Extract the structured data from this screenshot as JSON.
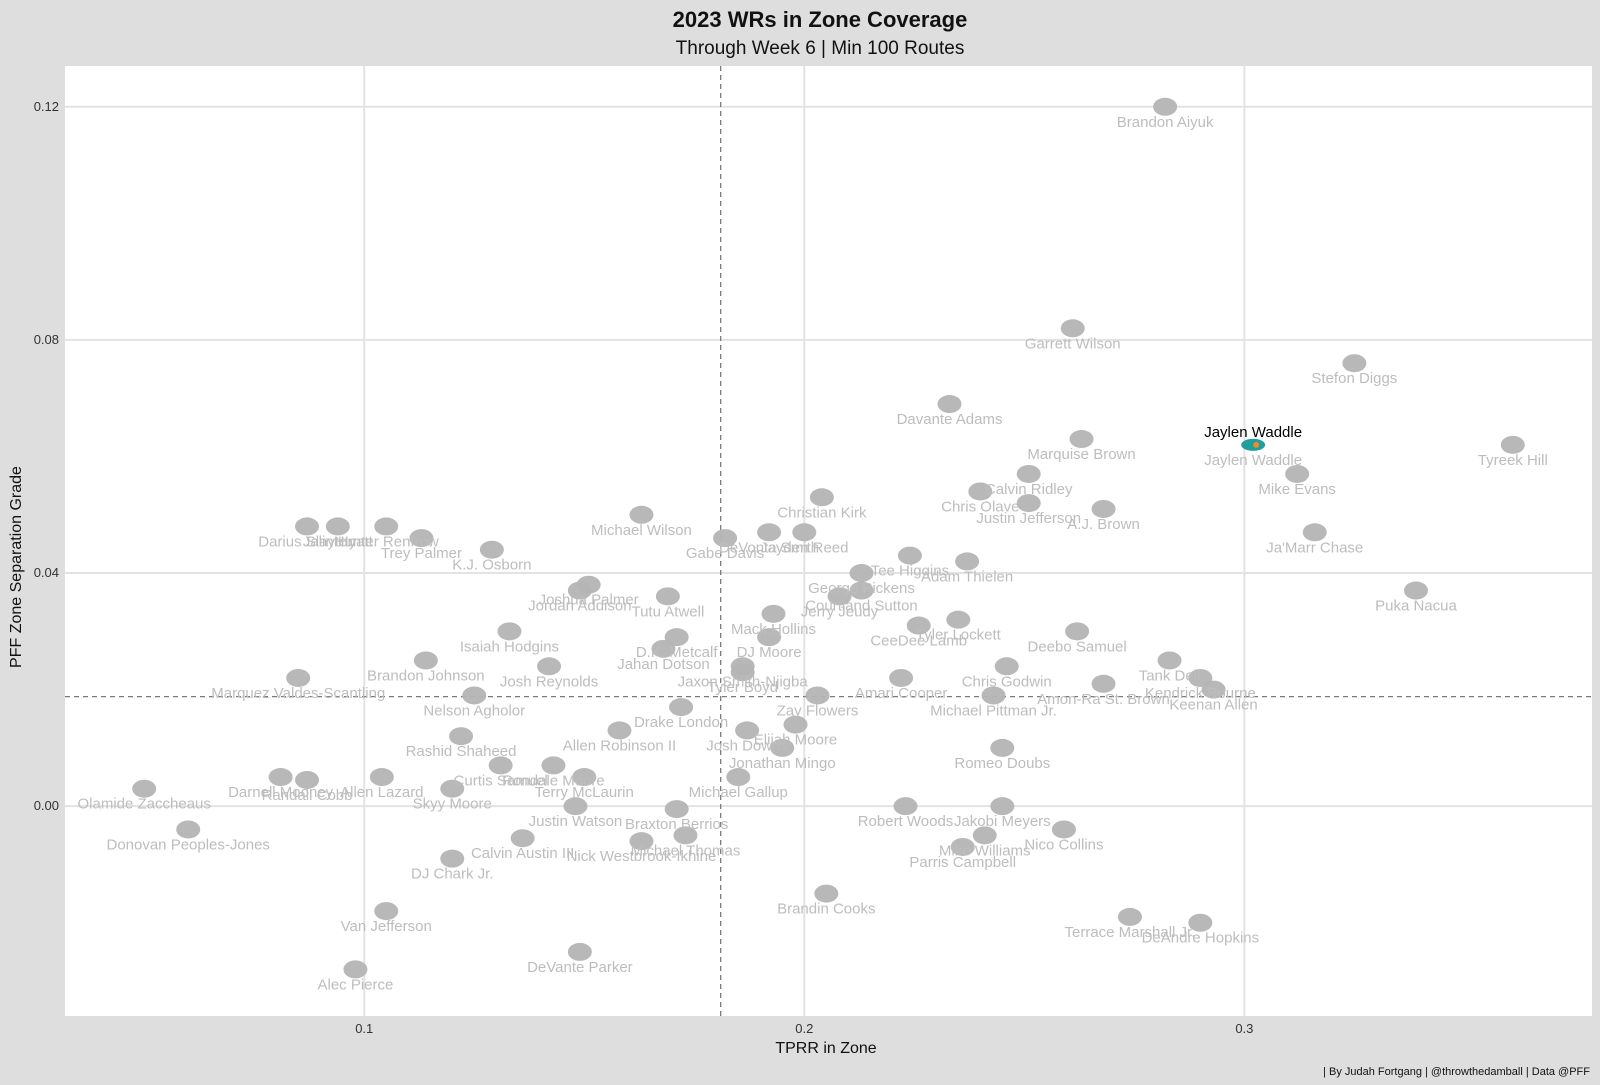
{
  "caption": "| By Judah Fortgang | @throwthedamball | Data @PFF",
  "colors": {
    "background": "#dedede",
    "panel": "#ffffff",
    "grid": "#e3e3e3",
    "marker": "#b4b4b4",
    "label": "#bdbdbd",
    "highlight_label": "#000000",
    "highlight_marker": "#1f9e9b",
    "highlight_accent": "#f28a2b"
  },
  "chart_data": {
    "type": "scatter",
    "title": "2023 WRs in Zone Coverage",
    "subtitle": "Through Week 6 | Min 100 Routes",
    "xlabel": "TPRR in Zone",
    "ylabel": "PFF Zone Separation Grade",
    "xlim": [
      0.032,
      0.379
    ],
    "ylim": [
      -0.036,
      0.127
    ],
    "xticks": [
      0.1,
      0.2,
      0.3
    ],
    "yticks": [
      0.0,
      0.04,
      0.08,
      0.12
    ],
    "xtick_labels": [
      "0.1",
      "0.2",
      "0.3"
    ],
    "ytick_labels": [
      "0.00",
      "0.04",
      "0.08",
      "0.12"
    ],
    "ref_lines": {
      "x": 0.181,
      "y": 0.0188
    },
    "grid": true,
    "highlight": "Jaylen Waddle",
    "points": [
      {
        "name": "Brandon Aiyuk",
        "x": 0.282,
        "y": 0.12
      },
      {
        "name": "Garrett Wilson",
        "x": 0.261,
        "y": 0.082
      },
      {
        "name": "Stefon Diggs",
        "x": 0.325,
        "y": 0.076
      },
      {
        "name": "Davante Adams",
        "x": 0.233,
        "y": 0.069
      },
      {
        "name": "Marquise Brown",
        "x": 0.263,
        "y": 0.063
      },
      {
        "name": "Jaylen Waddle",
        "x": 0.302,
        "y": 0.062
      },
      {
        "name": "Tyreek Hill",
        "x": 0.361,
        "y": 0.062
      },
      {
        "name": "Calvin Ridley",
        "x": 0.251,
        "y": 0.057
      },
      {
        "name": "Mike Evans",
        "x": 0.312,
        "y": 0.057
      },
      {
        "name": "Chris Olave",
        "x": 0.24,
        "y": 0.054
      },
      {
        "name": "Christian Kirk",
        "x": 0.204,
        "y": 0.053
      },
      {
        "name": "Justin Jefferson",
        "x": 0.251,
        "y": 0.052
      },
      {
        "name": "A.J. Brown",
        "x": 0.268,
        "y": 0.051
      },
      {
        "name": "Michael Wilson",
        "x": 0.163,
        "y": 0.05
      },
      {
        "name": "Hunter Renfrow",
        "x": 0.105,
        "y": 0.048
      },
      {
        "name": "Darius Slayton",
        "x": 0.087,
        "y": 0.048
      },
      {
        "name": "Jalin Hyatt",
        "x": 0.094,
        "y": 0.048
      },
      {
        "name": "Ja'Marr Chase",
        "x": 0.316,
        "y": 0.047
      },
      {
        "name": "Jayden Reed",
        "x": 0.2,
        "y": 0.047
      },
      {
        "name": "DeVonta Smith",
        "x": 0.192,
        "y": 0.047
      },
      {
        "name": "Trey Palmer",
        "x": 0.113,
        "y": 0.046
      },
      {
        "name": "Gabe Davis",
        "x": 0.182,
        "y": 0.046
      },
      {
        "name": "K.J. Osborn",
        "x": 0.129,
        "y": 0.044
      },
      {
        "name": "Tee Higgins",
        "x": 0.224,
        "y": 0.043
      },
      {
        "name": "Adam Thielen",
        "x": 0.237,
        "y": 0.042
      },
      {
        "name": "George Pickens",
        "x": 0.213,
        "y": 0.04
      },
      {
        "name": "Joshua Palmer",
        "x": 0.151,
        "y": 0.038
      },
      {
        "name": "Puka Nacua",
        "x": 0.339,
        "y": 0.037
      },
      {
        "name": "Courtland Sutton",
        "x": 0.213,
        "y": 0.037
      },
      {
        "name": "Jordan Addison",
        "x": 0.149,
        "y": 0.037
      },
      {
        "name": "Tutu Atwell",
        "x": 0.169,
        "y": 0.036
      },
      {
        "name": "Jerry Jeudy",
        "x": 0.208,
        "y": 0.036
      },
      {
        "name": "Mack Hollins",
        "x": 0.193,
        "y": 0.033
      },
      {
        "name": "Tyler Lockett",
        "x": 0.235,
        "y": 0.032
      },
      {
        "name": "CeeDee Lamb",
        "x": 0.226,
        "y": 0.031
      },
      {
        "name": "Isaiah Hodgins",
        "x": 0.133,
        "y": 0.03
      },
      {
        "name": "Deebo Samuel",
        "x": 0.262,
        "y": 0.03
      },
      {
        "name": "D.K. Metcalf",
        "x": 0.171,
        "y": 0.029
      },
      {
        "name": "DJ Moore",
        "x": 0.192,
        "y": 0.029
      },
      {
        "name": "Jahan Dotson",
        "x": 0.168,
        "y": 0.027
      },
      {
        "name": "Tank Dell",
        "x": 0.283,
        "y": 0.025
      },
      {
        "name": "Brandon Johnson",
        "x": 0.114,
        "y": 0.025
      },
      {
        "name": "Jaxon Smith-Njigba",
        "x": 0.186,
        "y": 0.024
      },
      {
        "name": "Chris Godwin",
        "x": 0.246,
        "y": 0.024
      },
      {
        "name": "Josh Reynolds",
        "x": 0.142,
        "y": 0.024
      },
      {
        "name": "Tyler Boyd",
        "x": 0.186,
        "y": 0.023
      },
      {
        "name": "Amari Cooper",
        "x": 0.222,
        "y": 0.022
      },
      {
        "name": "Kendrick Bourne",
        "x": 0.29,
        "y": 0.022
      },
      {
        "name": "Marquez Valdes-Scantling",
        "x": 0.085,
        "y": 0.022
      },
      {
        "name": "Amon-Ra St. Brown",
        "x": 0.268,
        "y": 0.021
      },
      {
        "name": "Michael Pittman Jr.",
        "x": 0.243,
        "y": 0.019
      },
      {
        "name": "Keenan Allen",
        "x": 0.293,
        "y": 0.02
      },
      {
        "name": "Zay Flowers",
        "x": 0.203,
        "y": 0.019
      },
      {
        "name": "Nelson Agholor",
        "x": 0.125,
        "y": 0.019
      },
      {
        "name": "Drake London",
        "x": 0.172,
        "y": 0.017
      },
      {
        "name": "Elijah Moore",
        "x": 0.198,
        "y": 0.014
      },
      {
        "name": "Allen Robinson II",
        "x": 0.158,
        "y": 0.013
      },
      {
        "name": "Josh Downs",
        "x": 0.187,
        "y": 0.013
      },
      {
        "name": "Rashid Shaheed",
        "x": 0.122,
        "y": 0.012
      },
      {
        "name": "Jonathan Mingo",
        "x": 0.195,
        "y": 0.01
      },
      {
        "name": "Romeo Doubs",
        "x": 0.245,
        "y": 0.01
      },
      {
        "name": "Curtis Samuel",
        "x": 0.131,
        "y": 0.007
      },
      {
        "name": "Rondale Moore",
        "x": 0.143,
        "y": 0.007
      },
      {
        "name": "Allen Lazard",
        "x": 0.104,
        "y": 0.005
      },
      {
        "name": "Darnell Mooney",
        "x": 0.081,
        "y": 0.005
      },
      {
        "name": "Randall Cobb",
        "x": 0.087,
        "y": 0.0045
      },
      {
        "name": "Michael Gallup",
        "x": 0.185,
        "y": 0.005
      },
      {
        "name": "Terry McLaurin",
        "x": 0.15,
        "y": 0.005
      },
      {
        "name": "Skyy Moore",
        "x": 0.12,
        "y": 0.003
      },
      {
        "name": "Olamide Zaccheaus",
        "x": 0.05,
        "y": 0.003
      },
      {
        "name": "Jakobi Meyers",
        "x": 0.245,
        "y": 0.0
      },
      {
        "name": "Robert Woods",
        "x": 0.223,
        "y": 0.0
      },
      {
        "name": "Justin Watson",
        "x": 0.148,
        "y": 0.0
      },
      {
        "name": "Braxton Berrios",
        "x": 0.171,
        "y": -0.0005
      },
      {
        "name": "Nico Collins",
        "x": 0.259,
        "y": -0.004
      },
      {
        "name": "Mike Williams",
        "x": 0.241,
        "y": -0.005
      },
      {
        "name": "Donovan Peoples-Jones",
        "x": 0.06,
        "y": -0.004
      },
      {
        "name": "Michael Thomas",
        "x": 0.173,
        "y": -0.005
      },
      {
        "name": "Calvin Austin III",
        "x": 0.136,
        "y": -0.0055
      },
      {
        "name": "Nick Westbrook-Ikhine",
        "x": 0.163,
        "y": -0.006
      },
      {
        "name": "Parris Campbell",
        "x": 0.236,
        "y": -0.007
      },
      {
        "name": "DJ Chark Jr.",
        "x": 0.12,
        "y": -0.009
      },
      {
        "name": "Brandin Cooks",
        "x": 0.205,
        "y": -0.015
      },
      {
        "name": "Terrace Marshall Jr.",
        "x": 0.274,
        "y": -0.019
      },
      {
        "name": "DeAndre Hopkins",
        "x": 0.29,
        "y": -0.02
      },
      {
        "name": "Van Jefferson",
        "x": 0.105,
        "y": -0.018
      },
      {
        "name": "DeVante Parker",
        "x": 0.149,
        "y": -0.025
      },
      {
        "name": "Alec Pierce",
        "x": 0.098,
        "y": -0.028
      }
    ]
  }
}
